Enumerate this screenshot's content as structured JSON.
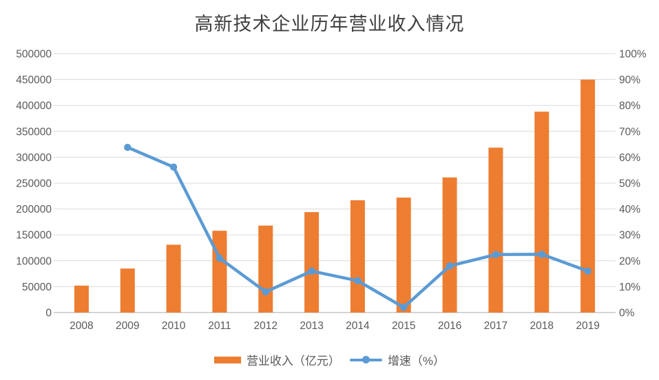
{
  "title": "高新技术企业历年营业收入情况",
  "colors": {
    "bar": "#ED7D31",
    "line": "#5B9BD5",
    "grid": "#D9D9D9",
    "axis_line": "#C6C6C6",
    "axis_text": "#595959",
    "title_text": "#404040",
    "background": "#FFFFFF"
  },
  "legend": {
    "items": [
      {
        "label": "营业收入（亿元）",
        "marker": "bar-swatch"
      },
      {
        "label": "增速（%）",
        "marker": "line-swatch"
      }
    ]
  },
  "chart_data": {
    "type": "bar",
    "subtype": "combo-bar-line-dual-axis",
    "title": "高新技术企业历年营业收入情况",
    "categories": [
      "2008",
      "2009",
      "2010",
      "2011",
      "2012",
      "2013",
      "2014",
      "2015",
      "2016",
      "2017",
      "2018",
      "2019"
    ],
    "series": [
      {
        "name": "营业收入（亿元）",
        "type": "bar",
        "axis": "left",
        "color": "#ED7D31",
        "values": [
          52000,
          85000,
          131000,
          158000,
          168000,
          194000,
          217000,
          222000,
          261000,
          318500,
          388000,
          450000
        ]
      },
      {
        "name": "增速（%）",
        "type": "line",
        "axis": "right",
        "color": "#5B9BD5",
        "values": [
          null,
          63.8,
          56.2,
          21,
          8,
          16,
          12.3,
          2,
          18,
          22.4,
          22.5,
          16
        ]
      }
    ],
    "left_axis": {
      "min": 0,
      "max": 500000,
      "step": 50000,
      "tick_labels": [
        "0",
        "50000",
        "100000",
        "150000",
        "200000",
        "250000",
        "300000",
        "350000",
        "400000",
        "450000",
        "500000"
      ]
    },
    "right_axis": {
      "min": 0,
      "max": 100,
      "step": 10,
      "tick_labels": [
        "0%",
        "10%",
        "20%",
        "30%",
        "40%",
        "50%",
        "60%",
        "70%",
        "80%",
        "90%",
        "100%"
      ]
    },
    "grid": true,
    "legend_position": "bottom"
  }
}
